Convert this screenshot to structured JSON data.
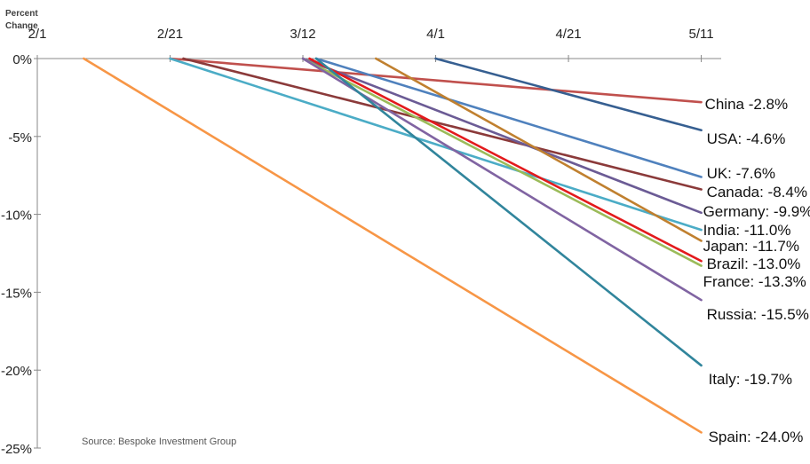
{
  "chart_data": {
    "type": "line",
    "title": "",
    "ylabel": [
      "Percent",
      "Change"
    ],
    "xlabel": "",
    "x_ticks": [
      "2/1",
      "2/21",
      "3/12",
      "4/1",
      "4/21",
      "5/11"
    ],
    "y_ticks": [
      "0%",
      "-5%",
      "-10%",
      "-15%",
      "-20%",
      "-25%"
    ],
    "xlim": [
      "2/1",
      "5/14"
    ],
    "ylim": [
      -25,
      0
    ],
    "source": "Source: Bespoke Investment Group",
    "series": [
      {
        "name": "China",
        "label": "China -2.8%",
        "color": "#c0504d",
        "x": [
          "2/21",
          "5/11"
        ],
        "y": [
          0,
          -2.8
        ]
      },
      {
        "name": "USA",
        "label": "USA: -4.6%",
        "color": "#365f91",
        "x": [
          "4/1",
          "5/11"
        ],
        "y": [
          0,
          -4.6
        ]
      },
      {
        "name": "UK",
        "label": "UK: -7.6%",
        "color": "#4f81bd",
        "x": [
          "3/14",
          "5/11"
        ],
        "y": [
          0,
          -7.6
        ]
      },
      {
        "name": "Canada",
        "label": "Canada: -8.4%",
        "color": "#8b3a3a",
        "x": [
          "2/23",
          "5/11"
        ],
        "y": [
          0,
          -8.4
        ]
      },
      {
        "name": "Germany",
        "label": "Germany: -9.9%",
        "color": "#6b5b95",
        "x": [
          "3/12",
          "5/11"
        ],
        "y": [
          0,
          -9.9
        ]
      },
      {
        "name": "India",
        "label": "India: -11.0%",
        "color": "#4bacc6",
        "x": [
          "2/21",
          "5/11"
        ],
        "y": [
          0,
          -11.0
        ]
      },
      {
        "name": "Japan",
        "label": "Japan: -11.7%",
        "color": "#c0802f",
        "x": [
          "3/23",
          "5/11"
        ],
        "y": [
          0,
          -11.7
        ]
      },
      {
        "name": "Brazil",
        "label": "Brazil: -13.0%",
        "color": "#e31a1c",
        "x": [
          "3/13",
          "5/11"
        ],
        "y": [
          0,
          -13.0
        ]
      },
      {
        "name": "France",
        "label": "France: -13.3%",
        "color": "#9bbb59",
        "x": [
          "3/12",
          "5/11"
        ],
        "y": [
          0,
          -13.3
        ]
      },
      {
        "name": "Russia",
        "label": "Russia: -15.5%",
        "color": "#8064a2",
        "x": [
          "3/12",
          "5/11"
        ],
        "y": [
          0,
          -15.5
        ]
      },
      {
        "name": "Italy",
        "label": "Italy: -19.7%",
        "color": "#31859c",
        "x": [
          "3/14",
          "5/11"
        ],
        "y": [
          0,
          -19.7
        ]
      },
      {
        "name": "Spain",
        "label": "Spain: -24.0%",
        "color": "#f79646",
        "x": [
          "2/8",
          "5/11"
        ],
        "y": [
          0,
          -24.0
        ]
      }
    ]
  }
}
